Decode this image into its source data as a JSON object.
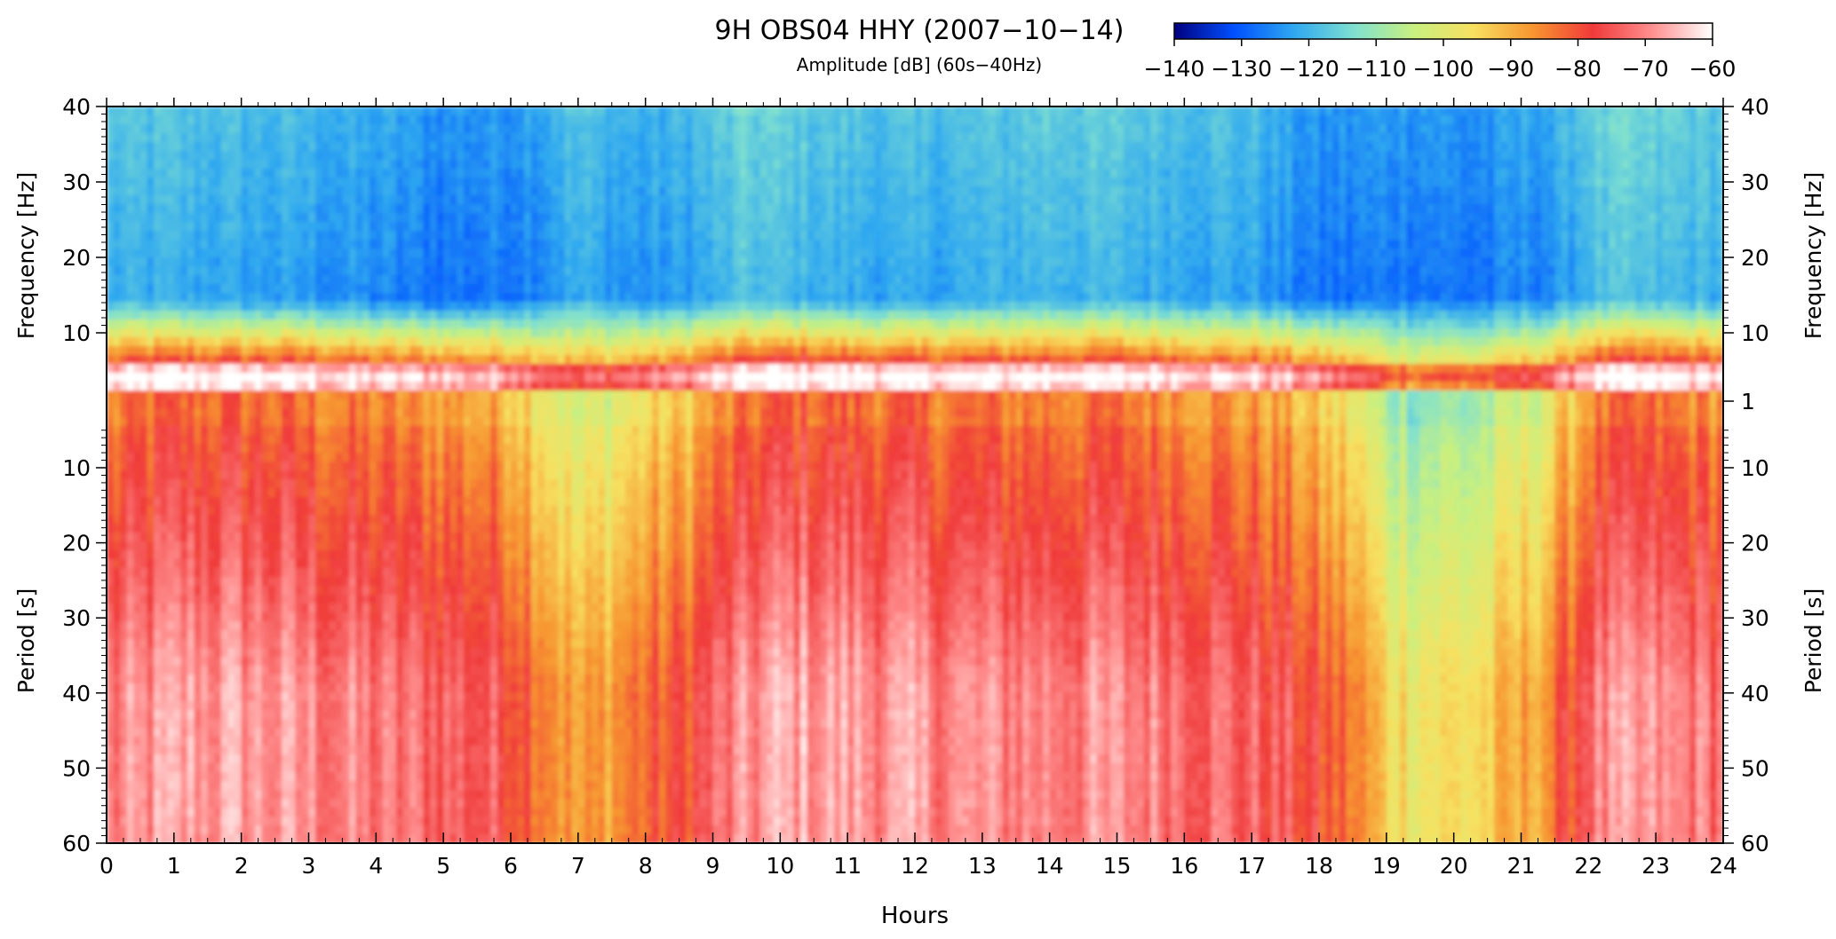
{
  "chart_data": {
    "type": "heatmap",
    "title": "9H OBS04 HHY (2007−10−14)",
    "subtitle": "Amplitude [dB] (60s−40Hz)",
    "xlabel": "Hours",
    "xlim": [
      0,
      24
    ],
    "x_ticks": [
      "0",
      "1",
      "2",
      "3",
      "4",
      "5",
      "6",
      "7",
      "8",
      "9",
      "10",
      "11",
      "12",
      "13",
      "14",
      "15",
      "16",
      "17",
      "18",
      "19",
      "20",
      "21",
      "22",
      "23",
      "24"
    ],
    "upper_panel": {
      "ylabel": "Frequency [Hz]",
      "y_ticks": [
        "10",
        "20",
        "30",
        "40"
      ],
      "right_y_ticks": [
        "1",
        "10",
        "20",
        "30",
        "40"
      ]
    },
    "lower_panel": {
      "ylabel": "Period [s]",
      "y_ticks": [
        "10",
        "20",
        "30",
        "40",
        "50",
        "60"
      ]
    },
    "colorbar": {
      "range": [
        -140,
        -60
      ],
      "ticks": [
        "−140",
        "−130",
        "−120",
        "−110",
        "−100",
        "−90",
        "−80",
        "−70",
        "−60"
      ],
      "colors": [
        "#00007f",
        "#0050ff",
        "#2fa8f0",
        "#7fe0d0",
        "#c8f080",
        "#f7e060",
        "#f79530",
        "#f03a3a",
        "#ff9090",
        "#ffffff"
      ]
    },
    "amplitude_profile": {
      "hours": [
        0,
        1,
        2,
        3,
        4,
        5,
        6,
        6.5,
        7,
        7.5,
        8,
        8.5,
        9,
        9.5,
        10,
        11,
        12,
        13,
        14,
        15,
        16,
        17,
        17.5,
        18,
        18.5,
        19,
        19.5,
        20,
        20.5,
        21,
        21.5,
        22,
        22.5,
        23,
        24
      ],
      "long_period_db": [
        -72,
        -68,
        -68,
        -70,
        -72,
        -73,
        -76,
        -82,
        -90,
        -86,
        -82,
        -80,
        -74,
        -70,
        -67,
        -68,
        -69,
        -70,
        -70,
        -70,
        -71,
        -74,
        -76,
        -80,
        -84,
        -94,
        -96,
        -96,
        -94,
        -90,
        -84,
        -72,
        -70,
        -70,
        -72
      ],
      "high_freq_db": [
        -118,
        -118,
        -119,
        -120,
        -122,
        -124,
        -123,
        -121,
        -118,
        -120,
        -121,
        -120,
        -118,
        -115,
        -116,
        -118,
        -119,
        -118,
        -116,
        -117,
        -118,
        -119,
        -122,
        -124,
        -124,
        -123,
        -123,
        -124,
        -124,
        -122,
        -122,
        -116,
        -115,
        -116,
        -117
      ]
    }
  }
}
